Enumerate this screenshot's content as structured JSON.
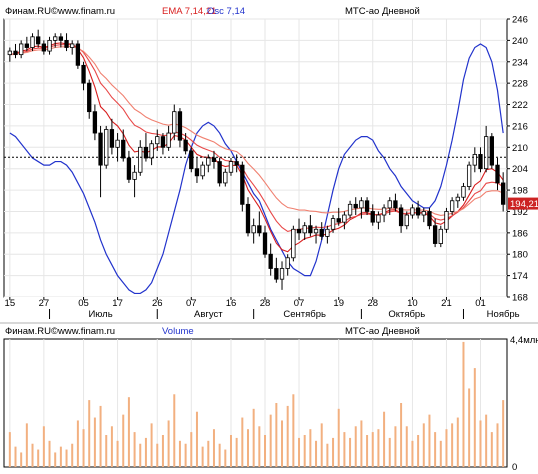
{
  "colors": {
    "background": "#ffffff",
    "grid": "#e6e6e6",
    "axis": "#000000",
    "candle": "#000000",
    "ema": [
      "#d81e1e",
      "#e84848",
      "#f08070"
    ],
    "oscillator": "#2233cc",
    "volume": "#f2b080",
    "price_label_bg": "#cc2222",
    "price_label_text": "#ffffff"
  },
  "price_panel": {
    "source": "Финам.RU©",
    "site": "www.finam.ru",
    "ema_label": "EMA 7,14,21",
    "osc_label": "Osc 7,14",
    "title": "МТС-ао Дневной",
    "current_price_label": "194,21",
    "reference_line_value": 207.2
  },
  "x_axis": {
    "day_ticks": [
      "15",
      "27",
      "05",
      "17",
      "26",
      "07",
      "16",
      "28",
      "07",
      "19",
      "28",
      "10",
      "21",
      "01"
    ],
    "month_labels": [
      "Июль",
      "Август",
      "Сентябрь",
      "Октябрь",
      "Ноябрь"
    ]
  },
  "volume_panel": {
    "source": "Финам.RU©",
    "site": "www.finam.ru",
    "label": "Volume",
    "title": "МТС-ао Дневной",
    "max_label": "4,4млн",
    "min_label": "0"
  },
  "chart_data": [
    {
      "type": "candlestick",
      "title": "МТС-ао Дневной",
      "ylim": [
        168,
        246
      ],
      "y_ticks": [
        168,
        174,
        180,
        186,
        192,
        198,
        204,
        210,
        216,
        222,
        228,
        234,
        240,
        246
      ],
      "ohlc": [
        [
          236,
          238,
          234,
          237
        ],
        [
          237,
          239,
          235,
          236
        ],
        [
          236,
          240,
          235,
          239
        ],
        [
          239,
          241,
          237,
          238
        ],
        [
          238,
          242,
          237,
          241
        ],
        [
          241,
          243,
          238,
          239
        ],
        [
          239,
          240,
          236,
          237
        ],
        [
          237,
          241,
          236,
          240
        ],
        [
          240,
          242,
          238,
          241
        ],
        [
          241,
          242,
          238,
          240
        ],
        [
          240,
          242,
          237,
          238
        ],
        [
          238,
          240,
          236,
          239
        ],
        [
          239,
          240,
          232,
          233
        ],
        [
          233,
          234,
          226,
          228
        ],
        [
          228,
          229,
          218,
          220
        ],
        [
          220,
          222,
          212,
          214
        ],
        [
          214,
          216,
          196,
          205
        ],
        [
          205,
          216,
          204,
          215
        ],
        [
          215,
          218,
          208,
          210
        ],
        [
          210,
          214,
          206,
          212
        ],
        [
          212,
          215,
          206,
          207
        ],
        [
          207,
          209,
          200,
          201
        ],
        [
          201,
          205,
          196,
          203
        ],
        [
          203,
          212,
          202,
          210
        ],
        [
          210,
          214,
          206,
          207
        ],
        [
          207,
          212,
          205,
          211
        ],
        [
          211,
          215,
          209,
          213
        ],
        [
          213,
          214,
          208,
          210
        ],
        [
          210,
          216,
          209,
          214
        ],
        [
          214,
          222,
          212,
          220
        ],
        [
          220,
          221,
          210,
          212
        ],
        [
          212,
          214,
          208,
          209
        ],
        [
          209,
          210,
          203,
          204
        ],
        [
          204,
          207,
          200,
          202
        ],
        [
          202,
          206,
          201,
          205
        ],
        [
          205,
          208,
          203,
          207
        ],
        [
          207,
          209,
          204,
          206
        ],
        [
          206,
          207,
          199,
          200
        ],
        [
          200,
          204,
          199,
          203
        ],
        [
          203,
          207,
          202,
          206
        ],
        [
          206,
          208,
          203,
          205
        ],
        [
          205,
          206,
          192,
          194
        ],
        [
          194,
          196,
          185,
          186
        ],
        [
          186,
          190,
          183,
          188
        ],
        [
          188,
          192,
          185,
          186
        ],
        [
          186,
          188,
          179,
          180
        ],
        [
          180,
          183,
          174,
          176
        ],
        [
          176,
          179,
          172,
          173
        ],
        [
          173,
          178,
          170,
          176
        ],
        [
          176,
          180,
          174,
          179
        ],
        [
          179,
          188,
          178,
          187
        ],
        [
          187,
          190,
          184,
          186
        ],
        [
          186,
          189,
          184,
          188
        ],
        [
          188,
          191,
          185,
          186
        ],
        [
          186,
          188,
          183,
          187
        ],
        [
          187,
          189,
          184,
          185
        ],
        [
          185,
          188,
          183,
          187
        ],
        [
          187,
          191,
          186,
          190
        ],
        [
          190,
          193,
          188,
          189
        ],
        [
          189,
          192,
          187,
          191
        ],
        [
          191,
          195,
          190,
          194
        ],
        [
          194,
          196,
          191,
          193
        ],
        [
          193,
          196,
          190,
          195
        ],
        [
          195,
          196,
          191,
          192
        ],
        [
          192,
          194,
          188,
          189
        ],
        [
          189,
          192,
          187,
          191
        ],
        [
          191,
          194,
          189,
          193
        ],
        [
          193,
          196,
          191,
          195
        ],
        [
          195,
          197,
          192,
          193
        ],
        [
          193,
          194,
          186,
          188
        ],
        [
          188,
          192,
          187,
          191
        ],
        [
          191,
          194,
          190,
          193
        ],
        [
          193,
          195,
          190,
          191
        ],
        [
          191,
          193,
          189,
          192
        ],
        [
          192,
          193,
          187,
          188
        ],
        [
          188,
          190,
          182,
          183
        ],
        [
          183,
          188,
          182,
          187
        ],
        [
          187,
          193,
          186,
          192
        ],
        [
          192,
          196,
          191,
          195
        ],
        [
          195,
          197,
          193,
          196
        ],
        [
          196,
          200,
          195,
          199
        ],
        [
          199,
          206,
          198,
          205
        ],
        [
          205,
          210,
          203,
          208
        ],
        [
          208,
          210,
          203,
          204
        ],
        [
          204,
          216,
          203,
          213
        ],
        [
          213,
          214,
          204,
          205
        ],
        [
          205,
          207,
          198,
          200
        ],
        [
          200,
          203,
          192,
          194
        ]
      ]
    },
    {
      "type": "line",
      "series": [
        {
          "name": "EMA 7",
          "values": [
            236,
            236.3,
            237,
            237.3,
            238.2,
            238.4,
            238,
            238.5,
            239.1,
            239.3,
            239,
            239,
            237.5,
            235.1,
            231.3,
            226.9,
            221.4,
            219.8,
            217.3,
            216,
            213.8,
            210.6,
            208.7,
            209,
            208.5,
            209.1,
            210.1,
            210.1,
            211.1,
            213.3,
            213,
            212,
            210,
            208,
            207.3,
            207.2,
            206.9,
            205.2,
            204.6,
            204.9,
            204.9,
            202.2,
            198.1,
            195.6,
            193.2,
            189.9,
            186.4,
            183.1,
            181.3,
            180.7,
            182.3,
            183.2,
            184.4,
            184.8,
            185.4,
            185.3,
            185.7,
            186.8,
            187.3,
            188.2,
            189.7,
            190.5,
            191.6,
            191.7,
            191.1,
            191.1,
            191.6,
            192.4,
            192.5,
            191.4,
            191.3,
            191.7,
            191.5,
            191.6,
            190.7,
            188.8,
            188.4,
            189.3,
            190.7,
            192,
            193.8,
            196.6,
            199.4,
            200.6,
            203.7,
            204,
            203,
            200.8
          ]
        },
        {
          "name": "EMA 14",
          "values": [
            236,
            236.2,
            236.6,
            236.9,
            237.6,
            237.8,
            237.8,
            238.1,
            238.6,
            238.8,
            238.8,
            238.8,
            238,
            236.6,
            234.2,
            231.5,
            228,
            226.2,
            224,
            222.4,
            220.7,
            218.2,
            216.2,
            215.4,
            214.3,
            213.9,
            213.7,
            213.3,
            213.4,
            214.3,
            214,
            213.2,
            212,
            210.6,
            209.8,
            209.2,
            208.6,
            207.2,
            206.3,
            206.1,
            205.8,
            204.2,
            201.5,
            199.4,
            197.2,
            194.6,
            191.8,
            189.3,
            187.5,
            186.4,
            186.8,
            186.9,
            187.3,
            187.3,
            187.6,
            187.5,
            187.7,
            188.3,
            188.6,
            189.2,
            190.2,
            190.6,
            191.2,
            191.3,
            191.1,
            191.1,
            191.3,
            191.9,
            192.1,
            191.5,
            191.4,
            191.7,
            191.7,
            191.8,
            191.3,
            190,
            189.6,
            190,
            190.8,
            191.8,
            193.1,
            195,
            197,
            197.8,
            199.9,
            200.2,
            200,
            198.9
          ]
        },
        {
          "name": "EMA 21",
          "values": [
            236,
            236.1,
            236.4,
            236.6,
            237.1,
            237.3,
            237.3,
            237.6,
            238,
            238.2,
            238.2,
            238.3,
            237.8,
            236.9,
            235.3,
            233.4,
            230.8,
            229.3,
            227.5,
            226,
            224.5,
            222.5,
            220.7,
            219.7,
            218.5,
            217.7,
            217.1,
            216.5,
            216.2,
            216.6,
            216.2,
            215.5,
            214.5,
            213.4,
            212.7,
            212.1,
            211.5,
            210.4,
            209.6,
            209.2,
            208.8,
            207.5,
            205.5,
            203.9,
            202.2,
            200.1,
            197.9,
            195.8,
            194.2,
            193.1,
            192.8,
            192.4,
            192.4,
            192.1,
            192,
            191.7,
            191.6,
            191.8,
            191.8,
            192,
            192.5,
            192.7,
            193,
            193,
            192.7,
            192.6,
            192.6,
            192.9,
            192.9,
            192.5,
            192.4,
            192.5,
            192.4,
            192.4,
            192.1,
            191.3,
            190.9,
            191.1,
            191.5,
            192,
            192.8,
            194.1,
            195.5,
            196.1,
            197.5,
            197.8,
            197.8,
            197.2
          ]
        }
      ]
    },
    {
      "type": "line",
      "series": [
        {
          "name": "Osc 7,14",
          "values": [
            214,
            213,
            211,
            209,
            207,
            206,
            205,
            205,
            206,
            206,
            205,
            203,
            200,
            197,
            193,
            189,
            184,
            180,
            177,
            174,
            172,
            170,
            169,
            169,
            170,
            172,
            176,
            180,
            186,
            192,
            198,
            205,
            210,
            214,
            216,
            217,
            216,
            214,
            211,
            209,
            206,
            203,
            200,
            197,
            195,
            191,
            187,
            184,
            181,
            178,
            176,
            175,
            174,
            174,
            178,
            184,
            191,
            198,
            204,
            208,
            210,
            212,
            213,
            213,
            212,
            209,
            207,
            204,
            202,
            199,
            197,
            195,
            194,
            193,
            193,
            195,
            199,
            205,
            212,
            220,
            229,
            235,
            238,
            239,
            238,
            234,
            226,
            214
          ]
        }
      ]
    },
    {
      "type": "bar",
      "title": "МТС-ао Дневной",
      "ylim": [
        0,
        4.4
      ],
      "values": [
        1.2,
        0.7,
        0.5,
        1.5,
        0.8,
        0.6,
        1.4,
        0.9,
        0.5,
        0.7,
        0.6,
        0.8,
        1.6,
        1.3,
        2.3,
        1.7,
        2.1,
        1.1,
        1.4,
        0.9,
        1.8,
        2.4,
        1.2,
        0.8,
        1.0,
        1.5,
        0.8,
        1.1,
        1.6,
        2.5,
        0.9,
        0.8,
        1.2,
        1.9,
        0.7,
        0.9,
        1.3,
        0.8,
        0.6,
        1.1,
        1.0,
        1.7,
        1.3,
        2.0,
        1.4,
        1.1,
        1.8,
        2.2,
        1.6,
        2.1,
        2.5,
        1.0,
        1.1,
        1.3,
        0.9,
        1.5,
        0.8,
        1.0,
        2.0,
        1.2,
        1.0,
        1.4,
        1.6,
        1.1,
        1.2,
        1.3,
        1.9,
        1.0,
        1.4,
        2.2,
        1.4,
        0.9,
        1.1,
        1.5,
        1.8,
        1.2,
        0.9,
        1.3,
        1.5,
        1.7,
        4.3,
        2.7,
        3.4,
        1.6,
        1.8,
        1.2,
        1.5,
        2.3
      ]
    }
  ]
}
